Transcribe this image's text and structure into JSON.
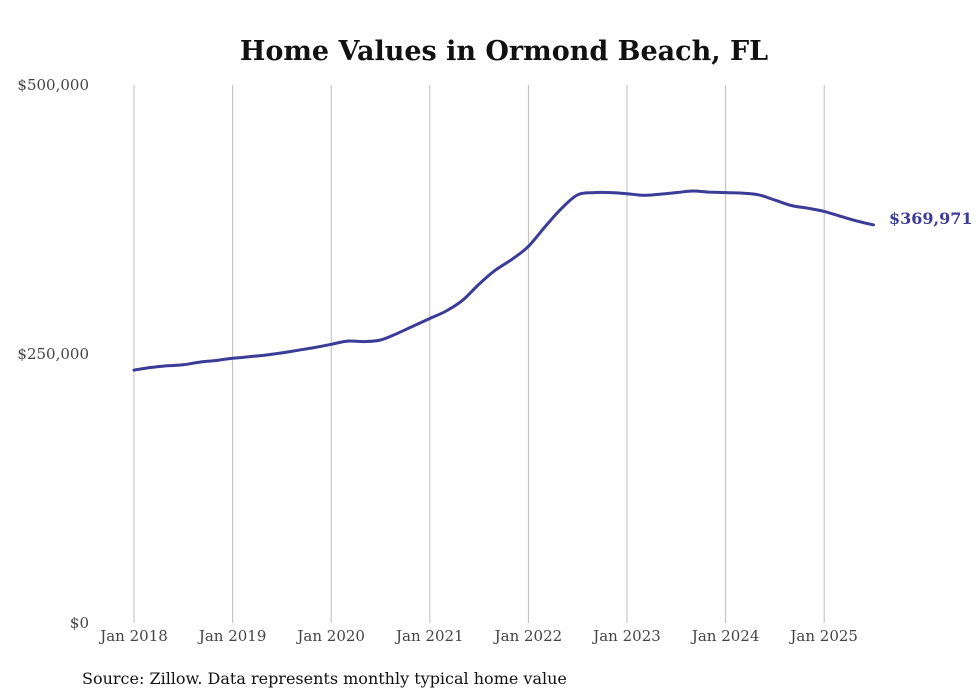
{
  "chart_data": {
    "type": "line",
    "title": "Home Values in Ormond Beach, FL",
    "xlabel": "",
    "ylabel": "",
    "ylim": [
      0,
      500000
    ],
    "grid": "vertical",
    "x_ticks": [
      "Jan 2018",
      "Jan 2019",
      "Jan 2020",
      "Jan 2021",
      "Jan 2022",
      "Jan 2023",
      "Jan 2024",
      "Jan 2025"
    ],
    "y_ticks": [
      "$0",
      "$250,000",
      "$500,000"
    ],
    "y_tick_values": [
      0,
      250000,
      500000
    ],
    "end_label": "$369,971",
    "source": "Source: Zillow. Data represents monthly typical home value",
    "series": [
      {
        "color": "#3b3b98",
        "x": [
          "2018-01",
          "2018-03",
          "2018-05",
          "2018-07",
          "2018-09",
          "2018-11",
          "2019-01",
          "2019-03",
          "2019-05",
          "2019-07",
          "2019-09",
          "2019-11",
          "2020-01",
          "2020-03",
          "2020-05",
          "2020-07",
          "2020-09",
          "2020-11",
          "2021-01",
          "2021-03",
          "2021-05",
          "2021-07",
          "2021-09",
          "2021-11",
          "2022-01",
          "2022-03",
          "2022-05",
          "2022-07",
          "2022-09",
          "2022-11",
          "2023-01",
          "2023-03",
          "2023-05",
          "2023-07",
          "2023-09",
          "2023-11",
          "2024-01",
          "2024-03",
          "2024-05",
          "2024-07",
          "2024-09",
          "2024-11",
          "2025-01",
          "2025-03",
          "2025-05",
          "2025-07"
        ],
        "values": [
          235000,
          237500,
          239000,
          240000,
          242500,
          244000,
          246000,
          247500,
          249000,
          251000,
          253500,
          256000,
          259000,
          262000,
          261500,
          263000,
          269000,
          276000,
          283000,
          290000,
          300000,
          315000,
          328000,
          338000,
          350000,
          368000,
          385000,
          398000,
          400000,
          400000,
          399000,
          397500,
          398500,
          400000,
          401500,
          400500,
          400000,
          399500,
          398000,
          393000,
          388000,
          385500,
          382500,
          378000,
          373500,
          369971
        ]
      }
    ]
  }
}
